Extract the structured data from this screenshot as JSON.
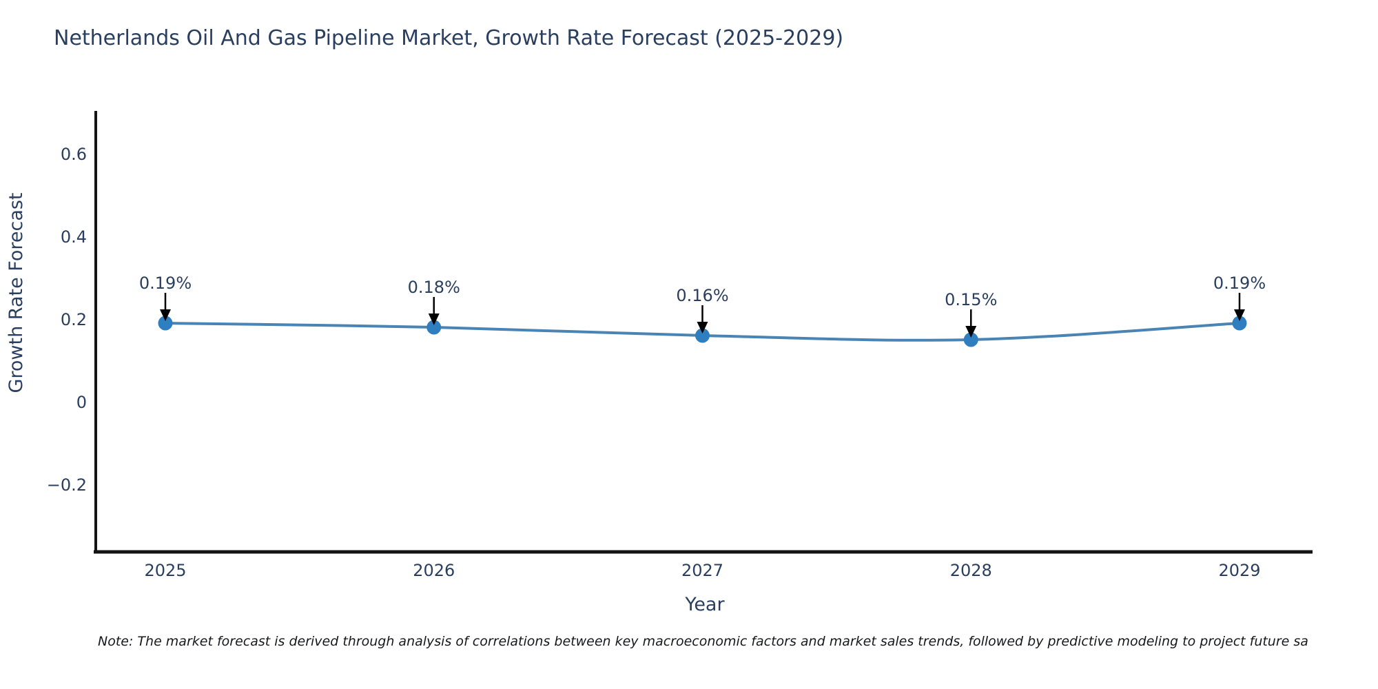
{
  "title": "Netherlands Oil And Gas Pipeline Market, Growth Rate Forecast (2025-2029)",
  "note": "Note: The market forecast is derived through analysis of correlations between key macroeconomic factors and market sales trends, followed by predictive modeling to project future sa",
  "colors": {
    "background": "#ffffff",
    "title_text": "#2a3f5f",
    "axis_line": "#141414",
    "tick_text": "#2a3f5f",
    "series_line": "#4a84b4",
    "marker_fill": "#2f7ec0",
    "annotation_text": "#2a3f5f",
    "annotation_arrow": "#000000",
    "note_text": "#16181d"
  },
  "chart_data": {
    "type": "line",
    "title": "Netherlands Oil And Gas Pipeline Market, Growth Rate Forecast (2025-2029)",
    "xlabel": "Year",
    "ylabel": "Growth Rate Forecast",
    "x": [
      2025,
      2026,
      2027,
      2028,
      2029
    ],
    "values": [
      0.19,
      0.18,
      0.16,
      0.15,
      0.19
    ],
    "annotations": [
      "0.19%",
      "0.18%",
      "0.16%",
      "0.15%",
      "0.19%"
    ],
    "xtick_labels": [
      "2025",
      "2026",
      "2027",
      "2028",
      "2029"
    ],
    "yticks": [
      -0.2,
      0,
      0.2,
      0.4,
      0.6
    ],
    "ytick_labels": [
      "−0.2",
      "0",
      "0.2",
      "0.4",
      "0.6"
    ],
    "ylim": [
      -0.37,
      0.71
    ],
    "xlim": [
      2024.74,
      2029.27
    ],
    "grid": false,
    "legend": "none",
    "line_shape": "spline",
    "marker": "circle"
  }
}
